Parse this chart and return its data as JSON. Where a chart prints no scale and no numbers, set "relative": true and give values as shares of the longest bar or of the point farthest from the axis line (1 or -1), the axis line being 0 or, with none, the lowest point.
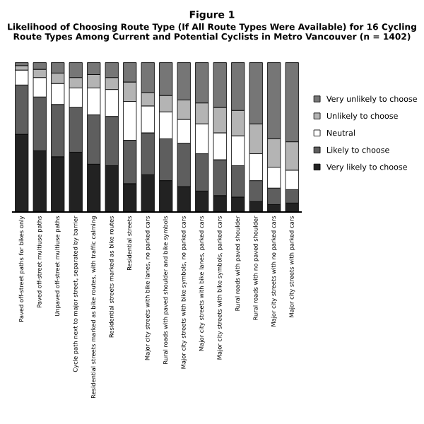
{
  "chart_data": {
    "type": "bar",
    "title": "Figure 1",
    "subtitle": "Likelihood of Choosing Route Type (If All Route Types Were Available) for 16 Cycling Route Types Among Current and Potential Cyclists in Metro Vancouver (n = 1402)",
    "categories": [
      "Paved off-street paths for bikes only",
      "Paved off-street multiuse paths",
      "Unpaved off-street multiuse paths",
      "Cycle path next to major street, separated by barrier",
      "Residential streets marked as bike routes, with traffic calming",
      "Residential streets marked as bike routes",
      "Residential streets",
      "Major city streets with bike lanes, no parked cars",
      "Rural roads with paved shoulder and bike symbols",
      "Major city streets with bike symbols, no parked cars",
      "Major city streets with bike lanes, parked cars",
      "Major city streets with bike symbols, parked cars",
      "Rural roads with paved shoulder",
      "Rural roads with no paved shoulder",
      "Major city streets with no parked cars",
      "Major city streets with parked cars"
    ],
    "stacked": true,
    "relative": true,
    "legend": "right",
    "series": [
      {
        "name": "Very likely to choose",
        "color": "#222222",
        "values": [
          0.52,
          0.41,
          0.37,
          0.4,
          0.32,
          0.31,
          0.19,
          0.25,
          0.21,
          0.17,
          0.14,
          0.11,
          0.1,
          0.07,
          0.05,
          0.06
        ]
      },
      {
        "name": "Likely to choose",
        "color": "#5e5e5e",
        "values": [
          0.33,
          0.36,
          0.35,
          0.3,
          0.33,
          0.33,
          0.29,
          0.28,
          0.28,
          0.29,
          0.25,
          0.24,
          0.21,
          0.14,
          0.11,
          0.09
        ]
      },
      {
        "name": "Neutral",
        "color": "#ffffff",
        "values": [
          0.1,
          0.13,
          0.14,
          0.13,
          0.18,
          0.18,
          0.26,
          0.18,
          0.18,
          0.16,
          0.2,
          0.18,
          0.2,
          0.18,
          0.14,
          0.13
        ]
      },
      {
        "name": "Unlikely to choose",
        "color": "#b4b4b4",
        "values": [
          0.03,
          0.055,
          0.07,
          0.07,
          0.09,
          0.08,
          0.13,
          0.09,
          0.11,
          0.13,
          0.14,
          0.17,
          0.17,
          0.2,
          0.19,
          0.19
        ]
      },
      {
        "name": "Very unlikely to choose",
        "color": "#767676",
        "values": [
          0.02,
          0.045,
          0.07,
          0.1,
          0.08,
          0.1,
          0.13,
          0.2,
          0.22,
          0.25,
          0.27,
          0.3,
          0.32,
          0.41,
          0.51,
          0.53
        ]
      }
    ]
  }
}
